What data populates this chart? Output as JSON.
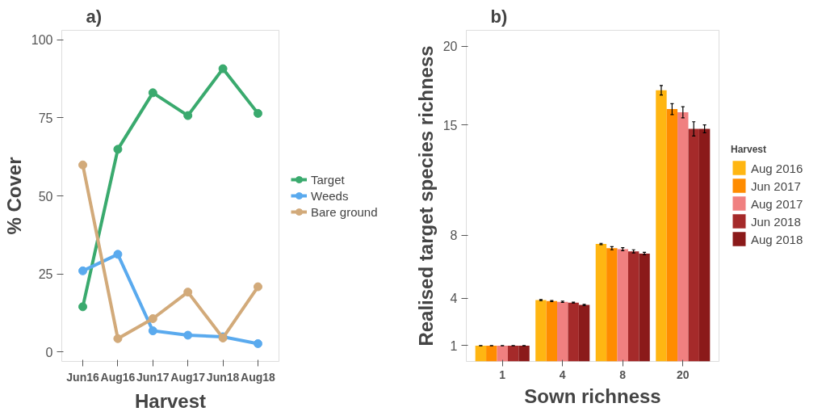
{
  "chart_data": [
    {
      "type": "line",
      "title": "a)",
      "xlabel": "Harvest",
      "ylabel": "% Cover",
      "categories": [
        "Jun16",
        "Aug16",
        "Jun17",
        "Aug17",
        "Jun18",
        "Aug18"
      ],
      "ylim": [
        -3,
        103
      ],
      "yticks": [
        0,
        25,
        50,
        75,
        100
      ],
      "grid": false,
      "legend": "right",
      "marker": "circle",
      "line_style": "solid",
      "series": [
        {
          "name": "Target",
          "color": "#3aaa6e",
          "values": [
            14.5,
            64.9,
            83,
            75.7,
            90.7,
            76.4
          ]
        },
        {
          "name": "Weeds",
          "color": "#5aaaee",
          "values": [
            26,
            31.3,
            6.8,
            5.4,
            4.9,
            2.7
          ]
        },
        {
          "name": "Bare ground",
          "color": "#d2aa7a",
          "values": [
            59.9,
            4.3,
            10.7,
            19.2,
            4.5,
            20.9
          ]
        }
      ]
    },
    {
      "type": "bar",
      "title": "b)",
      "xlabel": "Sown richness",
      "ylabel": "Realised target species richness",
      "legend_title": "Harvest",
      "categories": [
        "1",
        "4",
        "8",
        "20"
      ],
      "ylim": [
        0,
        21
      ],
      "yticks": [
        1,
        4,
        8,
        15,
        20
      ],
      "grid": false,
      "legend": "right",
      "series": [
        {
          "name": "Aug 2016",
          "color": "#ffb612",
          "values": [
            1,
            3.89,
            7.45,
            17.2
          ],
          "errors": [
            0,
            0.03,
            0.04,
            0.3
          ]
        },
        {
          "name": "Jun 2017",
          "color": "#ff8c00",
          "values": [
            1,
            3.83,
            7.18,
            16.0
          ],
          "errors": [
            0,
            0.03,
            0.1,
            0.35
          ]
        },
        {
          "name": "Aug 2017",
          "color": "#f08080",
          "values": [
            1,
            3.78,
            7.12,
            15.8
          ],
          "errors": [
            0,
            0.04,
            0.1,
            0.35
          ]
        },
        {
          "name": "Jun 2018",
          "color": "#a52a2a",
          "values": [
            1,
            3.73,
            6.98,
            14.75
          ],
          "errors": [
            0,
            0.03,
            0.1,
            0.45
          ]
        },
        {
          "name": "Aug 2018",
          "color": "#8b1a1a",
          "values": [
            1,
            3.58,
            6.84,
            14.75
          ],
          "errors": [
            0,
            0.04,
            0.08,
            0.25
          ]
        }
      ]
    }
  ]
}
